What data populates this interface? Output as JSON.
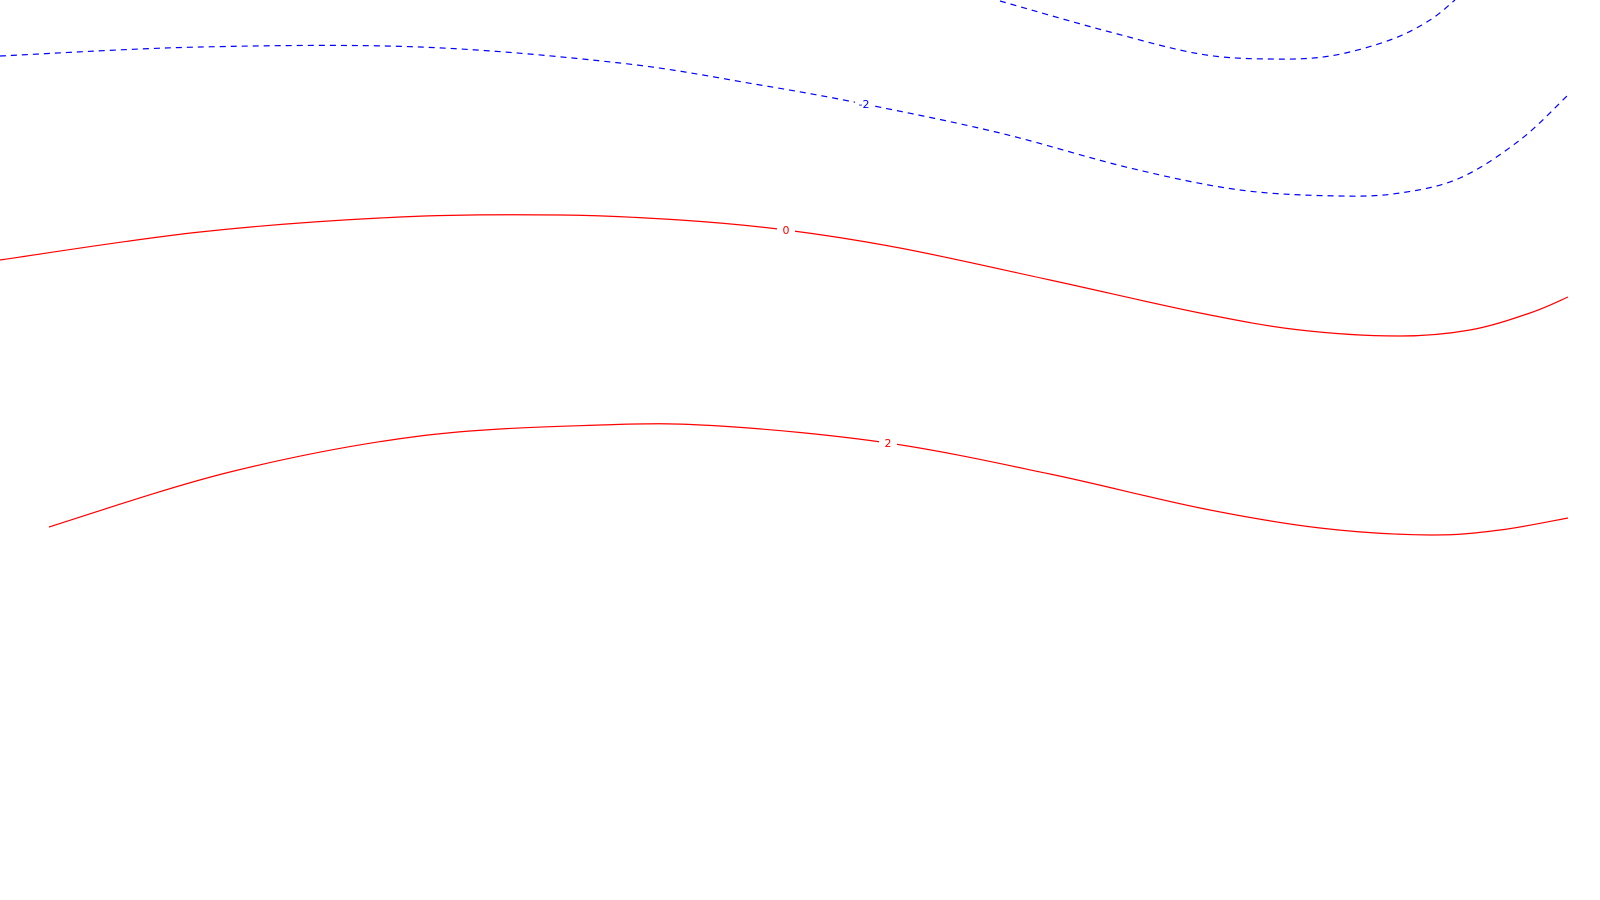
{
  "chart_data": {
    "type": "contour",
    "title": "",
    "xlabel": "",
    "ylabel": "",
    "grid": false,
    "legend": "none",
    "colors": {
      "negative": "#0000ff",
      "non_negative": "#ff0000"
    },
    "contours": [
      {
        "level": "-2",
        "line_style": "dashed",
        "color": "#0000ff",
        "points": [
          [
            0,
            56
          ],
          [
            200,
            47
          ],
          [
            420,
            47
          ],
          [
            620,
            63
          ],
          [
            760,
            85
          ],
          [
            864,
            104
          ],
          [
            1000,
            133
          ],
          [
            1130,
            168
          ],
          [
            1240,
            190
          ],
          [
            1340,
            196
          ],
          [
            1400,
            193
          ],
          [
            1460,
            178
          ],
          [
            1520,
            140
          ],
          [
            1568,
            95
          ]
        ]
      },
      {
        "level": "-2",
        "line_style": "dashed",
        "color": "#0000ff",
        "points": [
          [
            1000,
            1
          ],
          [
            1110,
            32
          ],
          [
            1200,
            54
          ],
          [
            1270,
            59
          ],
          [
            1330,
            56
          ],
          [
            1390,
            40
          ],
          [
            1430,
            20
          ],
          [
            1455,
            0
          ]
        ]
      },
      {
        "level": "0",
        "line_style": "solid",
        "color": "#ff0000",
        "points": [
          [
            0,
            260
          ],
          [
            200,
            232
          ],
          [
            400,
            217
          ],
          [
            560,
            215
          ],
          [
            680,
            220
          ],
          [
            786,
            230
          ],
          [
            900,
            248
          ],
          [
            1050,
            280
          ],
          [
            1200,
            313
          ],
          [
            1300,
            330
          ],
          [
            1400,
            336
          ],
          [
            1470,
            330
          ],
          [
            1530,
            313
          ],
          [
            1568,
            297
          ]
        ]
      },
      {
        "level": "2",
        "line_style": "solid",
        "color": "#ff0000",
        "points": [
          [
            49,
            527
          ],
          [
            230,
            472
          ],
          [
            420,
            436
          ],
          [
            600,
            425
          ],
          [
            720,
            426
          ],
          [
            888,
            443
          ],
          [
            1050,
            474
          ],
          [
            1200,
            508
          ],
          [
            1320,
            528
          ],
          [
            1430,
            535
          ],
          [
            1500,
            530
          ],
          [
            1568,
            518
          ]
        ]
      }
    ],
    "labels": [
      {
        "text": "-2",
        "at": [
          864,
          104
        ],
        "color": "#0000ff"
      },
      {
        "text": "0",
        "at": [
          786,
          230
        ],
        "color": "#ff0000"
      },
      {
        "text": "2",
        "at": [
          888,
          443
        ],
        "color": "#ff0000"
      }
    ]
  }
}
